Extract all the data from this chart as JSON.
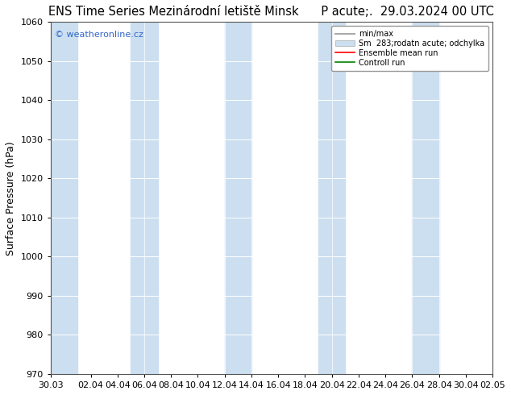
{
  "title": "ENS Time Series Mezinárodní letiště Minsk",
  "subtitle": "P acute;.  29.03.2024 00 UTC",
  "ylabel": "Surface Pressure (hPa)",
  "ylim": [
    970,
    1060
  ],
  "yticks": [
    970,
    980,
    990,
    1000,
    1010,
    1020,
    1030,
    1040,
    1050,
    1060
  ],
  "x_labels": [
    "30.03",
    "02.04",
    "04.04",
    "06.04",
    "08.04",
    "10.04",
    "12.04",
    "14.04",
    "16.04",
    "18.04",
    "20.04",
    "22.04",
    "24.04",
    "26.04",
    "28.04",
    "30.04",
    "02.05"
  ],
  "watermark": "© weatheronline.cz",
  "legend_labels": [
    "min/max",
    "Sm  283;rodatn acute; odchylka",
    "Ensemble mean run",
    "Controll run"
  ],
  "legend_colors": [
    "#aaaaaa",
    "#c8daf0",
    "red",
    "green"
  ],
  "band_positions": [
    0,
    1,
    3,
    6,
    10,
    13,
    16
  ],
  "band_color": "#ccdff0",
  "background_color": "#ffffff",
  "plot_bg_color": "#ffffff",
  "title_fontsize": 10.5,
  "subtitle_fontsize": 10.5,
  "tick_fontsize": 8,
  "ylabel_fontsize": 9,
  "watermark_color": "#3366cc"
}
